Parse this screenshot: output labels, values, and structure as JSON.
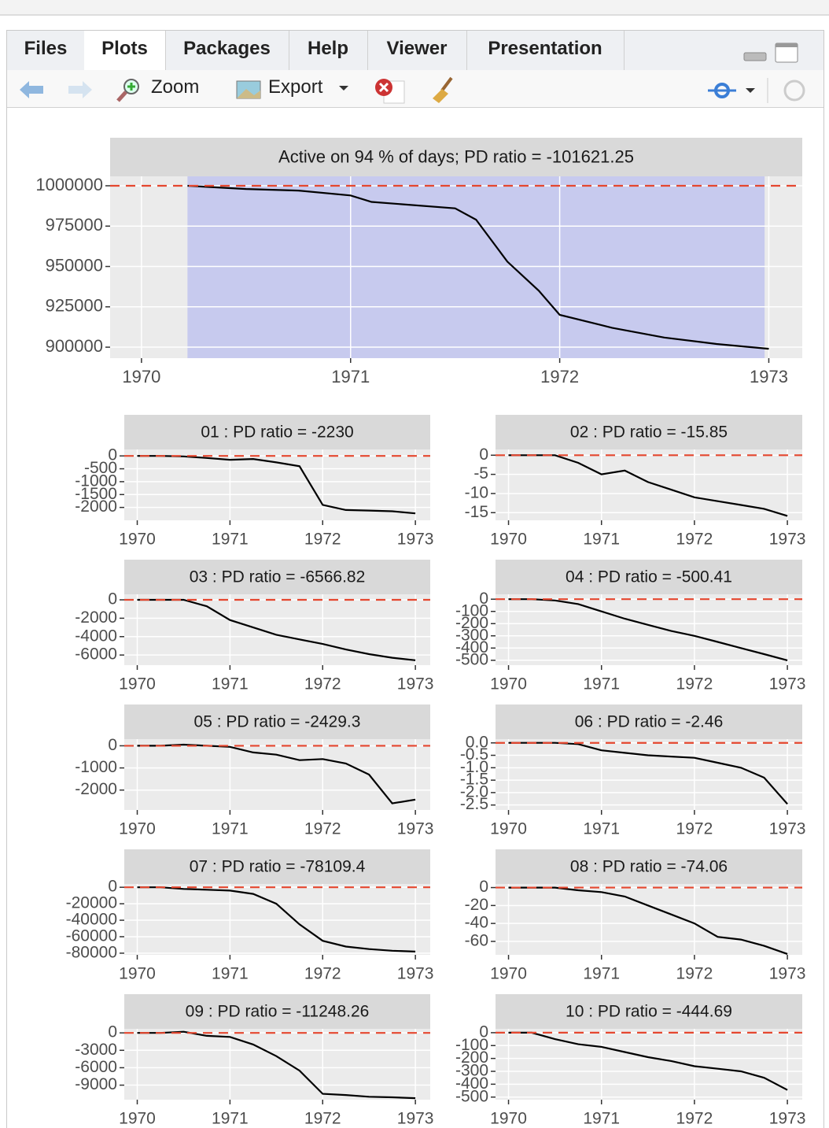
{
  "tabs": [
    "Files",
    "Plots",
    "Packages",
    "Help",
    "Viewer",
    "Presentation"
  ],
  "toolbar": {
    "zoom": "Zoom",
    "export": "Export"
  },
  "chart_data": [
    {
      "type": "line",
      "title": "Active on 94 % of days; PD ratio =  -101621.25",
      "color": "#000000",
      "hline": 1000000,
      "hline_color": "#e5472f",
      "shade": [
        1970.22,
        1972.98
      ],
      "shade_color": "#c3c6ee",
      "x": [
        1970.22,
        1970.5,
        1970.75,
        1971,
        1971.1,
        1971.5,
        1971.6,
        1971.75,
        1971.9,
        1972,
        1972.25,
        1972.5,
        1972.75,
        1973
      ],
      "values": [
        1000000,
        998000,
        997000,
        994000,
        990000,
        986000,
        979000,
        953000,
        935000,
        920000,
        912000,
        906000,
        902000,
        899000
      ],
      "xlim": [
        1969.85,
        1973.16
      ],
      "ylim": [
        893200,
        1005850
      ],
      "xticks": [
        1970,
        1971,
        1972,
        1973
      ],
      "yticks": [
        900000,
        925000,
        950000,
        975000,
        1000000
      ],
      "grid": true
    },
    {
      "type": "line",
      "title": "01 : PD ratio =  -2230",
      "color": "#000000",
      "hline": 0,
      "hline_color": "#e5472f",
      "x": [
        1970,
        1970.25,
        1970.5,
        1970.75,
        1971,
        1971.25,
        1971.5,
        1971.75,
        1972,
        1972.25,
        1972.5,
        1972.75,
        1973
      ],
      "values": [
        0,
        0,
        -20,
        -80,
        -150,
        -120,
        -250,
        -400,
        -1900,
        -2100,
        -2120,
        -2150,
        -2230
      ],
      "xlim": [
        1969.86,
        1973.16
      ],
      "ylim": [
        -2500,
        250
      ],
      "xticks": [
        1970,
        1971,
        1972,
        1973
      ],
      "yticks": [
        -2000,
        -1500,
        -1000,
        -500,
        0
      ],
      "grid": true
    },
    {
      "type": "line",
      "title": "02 : PD ratio =  -15.85",
      "color": "#000000",
      "hline": 0,
      "hline_color": "#e5472f",
      "x": [
        1970,
        1970.25,
        1970.5,
        1970.75,
        1971,
        1971.25,
        1971.5,
        1971.75,
        1972,
        1972.25,
        1972.5,
        1972.75,
        1973
      ],
      "values": [
        0,
        0,
        0,
        -2,
        -5,
        -4,
        -7,
        -9,
        -11,
        -12,
        -13,
        -14,
        -15.85
      ],
      "xlim": [
        1969.86,
        1973.16
      ],
      "ylim": [
        -17,
        1.5
      ],
      "xticks": [
        1970,
        1971,
        1972,
        1973
      ],
      "yticks": [
        -15,
        -10,
        -5,
        0
      ],
      "grid": true
    },
    {
      "type": "line",
      "title": "03 : PD ratio =  -6566.82",
      "color": "#000000",
      "hline": 0,
      "hline_color": "#e5472f",
      "x": [
        1970,
        1970.25,
        1970.5,
        1970.75,
        1971,
        1971.25,
        1971.5,
        1971.75,
        1972,
        1972.25,
        1972.5,
        1972.75,
        1973
      ],
      "values": [
        0,
        0,
        0,
        -700,
        -2200,
        -3000,
        -3800,
        -4300,
        -4800,
        -5400,
        -5900,
        -6300,
        -6566.82
      ],
      "xlim": [
        1969.86,
        1973.16
      ],
      "ylim": [
        -7100,
        600
      ],
      "xticks": [
        1970,
        1971,
        1972,
        1973
      ],
      "yticks": [
        -6000,
        -4000,
        -2000,
        0
      ],
      "grid": true
    },
    {
      "type": "line",
      "title": "04 : PD ratio =  -500.41",
      "color": "#000000",
      "hline": 0,
      "hline_color": "#e5472f",
      "x": [
        1970,
        1970.25,
        1970.5,
        1970.75,
        1971,
        1971.25,
        1971.5,
        1971.75,
        1972,
        1972.25,
        1972.5,
        1972.75,
        1973
      ],
      "values": [
        0,
        0,
        -10,
        -40,
        -100,
        -160,
        -210,
        -260,
        -300,
        -350,
        -400,
        -450,
        -500.41
      ],
      "xlim": [
        1969.86,
        1973.16
      ],
      "ylim": [
        -540,
        40
      ],
      "xticks": [
        1970,
        1971,
        1972,
        1973
      ],
      "yticks": [
        -500,
        -400,
        -300,
        -200,
        -100,
        0
      ],
      "grid": true
    },
    {
      "type": "line",
      "title": "05 : PD ratio =  -2429.3",
      "color": "#000000",
      "hline": 0,
      "hline_color": "#e5472f",
      "x": [
        1970,
        1970.25,
        1970.5,
        1970.75,
        1971,
        1971.25,
        1971.5,
        1971.75,
        1972,
        1972.25,
        1972.5,
        1972.75,
        1973
      ],
      "values": [
        0,
        0,
        50,
        0,
        -50,
        -300,
        -400,
        -650,
        -600,
        -800,
        -1300,
        -2600,
        -2429.3
      ],
      "xlim": [
        1969.86,
        1973.16
      ],
      "ylim": [
        -2900,
        300
      ],
      "xticks": [
        1970,
        1971,
        1972,
        1973
      ],
      "yticks": [
        -2000,
        -1000,
        0
      ],
      "grid": true
    },
    {
      "type": "line",
      "title": "06 : PD ratio =  -2.46",
      "color": "#000000",
      "hline": 0,
      "hline_color": "#e5472f",
      "x": [
        1970,
        1970.25,
        1970.5,
        1970.75,
        1971,
        1971.25,
        1971.5,
        1971.75,
        1972,
        1972.25,
        1972.5,
        1972.75,
        1973
      ],
      "values": [
        0,
        0,
        0,
        -0.05,
        -0.3,
        -0.4,
        -0.5,
        -0.55,
        -0.6,
        -0.8,
        -1.0,
        -1.4,
        -2.46
      ],
      "xlim": [
        1969.86,
        1973.16
      ],
      "ylim": [
        -2.7,
        0.15
      ],
      "xticks": [
        1970,
        1971,
        1972,
        1973
      ],
      "yticks": [
        -2.5,
        {
          "value": -2,
          "label": "-2.0"
        },
        -1.5,
        {
          "value": -1,
          "label": "-1.0"
        },
        -0.5,
        {
          "value": 0,
          "label": "0.0"
        }
      ],
      "grid": true
    },
    {
      "type": "line",
      "title": "07 : PD ratio =  -78109.4",
      "color": "#000000",
      "hline": 0,
      "hline_color": "#e5472f",
      "x": [
        1970,
        1970.25,
        1970.5,
        1970.75,
        1971,
        1971.25,
        1971.5,
        1971.75,
        1972,
        1972.25,
        1972.5,
        1972.75,
        1973
      ],
      "values": [
        0,
        0,
        -2000,
        -3000,
        -4000,
        -8000,
        -20000,
        -45000,
        -65000,
        -72000,
        -75000,
        -77000,
        -78109.4
      ],
      "xlim": [
        1969.86,
        1973.16
      ],
      "ylim": [
        -82000,
        4000
      ],
      "xticks": [
        1970,
        1971,
        1972,
        1973
      ],
      "yticks": [
        -80000,
        -60000,
        -40000,
        -20000,
        0
      ],
      "grid": true
    },
    {
      "type": "line",
      "title": "08 : PD ratio =  -74.06",
      "color": "#000000",
      "hline": 0,
      "hline_color": "#e5472f",
      "x": [
        1970,
        1970.25,
        1970.5,
        1970.75,
        1971,
        1971.25,
        1971.5,
        1971.75,
        1972,
        1972.25,
        1972.5,
        1972.75,
        1973
      ],
      "values": [
        0,
        0,
        0,
        -3,
        -5,
        -10,
        -20,
        -30,
        -40,
        -55,
        -58,
        -65,
        -74.06
      ],
      "xlim": [
        1969.86,
        1973.16
      ],
      "ylim": [
        -75,
        4
      ],
      "xticks": [
        1970,
        1971,
        1972,
        1973
      ],
      "yticks": [
        -60,
        -40,
        -20,
        0
      ],
      "grid": true
    },
    {
      "type": "line",
      "title": "09 : PD ratio =  -11248.26",
      "color": "#000000",
      "hline": 0,
      "hline_color": "#e5472f",
      "x": [
        1970,
        1970.25,
        1970.5,
        1970.75,
        1971,
        1971.25,
        1971.5,
        1971.75,
        1972,
        1972.25,
        1972.5,
        1972.75,
        1973
      ],
      "values": [
        0,
        0,
        200,
        -500,
        -700,
        -2000,
        -4000,
        -6500,
        -10500,
        -10700,
        -11000,
        -11100,
        -11248.26
      ],
      "xlim": [
        1969.86,
        1973.16
      ],
      "ylim": [
        -11500,
        700
      ],
      "xticks": [
        1970,
        1971,
        1972,
        1973
      ],
      "yticks": [
        -9000,
        -6000,
        -3000,
        0
      ],
      "grid": true
    },
    {
      "type": "line",
      "title": "10 : PD ratio =  -444.69",
      "color": "#000000",
      "hline": 0,
      "hline_color": "#e5472f",
      "x": [
        1970,
        1970.25,
        1970.5,
        1970.75,
        1971,
        1971.25,
        1971.5,
        1971.75,
        1972,
        1972.25,
        1972.5,
        1972.75,
        1973
      ],
      "values": [
        0,
        0,
        -50,
        -90,
        -110,
        -150,
        -190,
        -220,
        -260,
        -280,
        -300,
        -350,
        -444.69
      ],
      "xlim": [
        1969.86,
        1973.16
      ],
      "ylim": [
        -520,
        30
      ],
      "xticks": [
        1970,
        1971,
        1972,
        1973
      ],
      "yticks": [
        -500,
        -400,
        -300,
        -200,
        -100,
        0
      ],
      "grid": true
    }
  ]
}
